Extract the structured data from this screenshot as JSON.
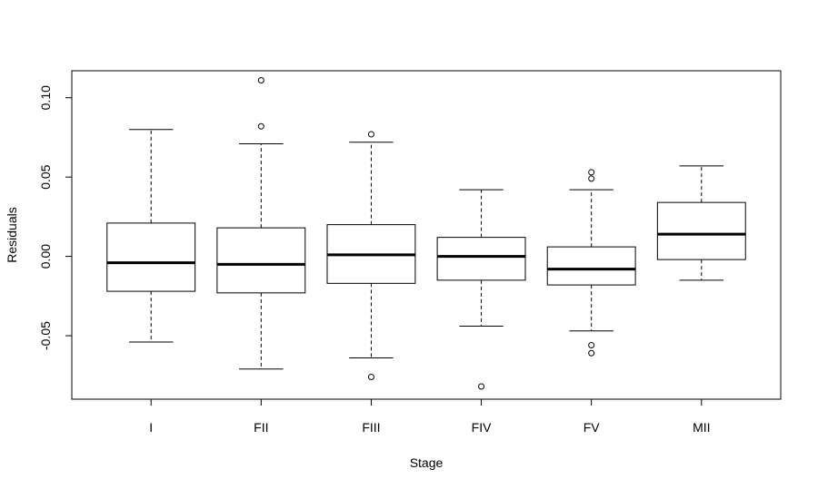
{
  "chart_data": {
    "type": "boxplot",
    "xlabel": "Stage",
    "ylabel": "Residuals",
    "ylim": [
      -0.09,
      0.117
    ],
    "yticks": [
      -0.05,
      0.0,
      0.05,
      0.1
    ],
    "ytick_labels": [
      "-0.05",
      "0.00",
      "0.05",
      "0.10"
    ],
    "grid": false,
    "categories": [
      "I",
      "FII",
      "FIII",
      "FIV",
      "FV",
      "MII"
    ],
    "boxes": [
      {
        "category": "I",
        "whisker_low": -0.054,
        "q1": -0.022,
        "median": -0.004,
        "q3": 0.021,
        "whisker_high": 0.08,
        "outliers": []
      },
      {
        "category": "FII",
        "whisker_low": -0.071,
        "q1": -0.023,
        "median": -0.005,
        "q3": 0.018,
        "whisker_high": 0.071,
        "outliers": [
          0.111,
          0.082
        ]
      },
      {
        "category": "FIII",
        "whisker_low": -0.064,
        "q1": -0.017,
        "median": 0.001,
        "q3": 0.02,
        "whisker_high": 0.072,
        "outliers": [
          0.077,
          -0.076
        ]
      },
      {
        "category": "FIV",
        "whisker_low": -0.044,
        "q1": -0.015,
        "median": 0.0,
        "q3": 0.012,
        "whisker_high": 0.042,
        "outliers": [
          -0.082
        ]
      },
      {
        "category": "FV",
        "whisker_low": -0.047,
        "q1": -0.018,
        "median": -0.008,
        "q3": 0.006,
        "whisker_high": 0.042,
        "outliers": [
          0.053,
          0.049,
          -0.056,
          -0.061
        ]
      },
      {
        "category": "MII",
        "whisker_low": -0.015,
        "q1": -0.002,
        "median": 0.014,
        "q3": 0.034,
        "whisker_high": 0.057,
        "outliers": []
      }
    ]
  }
}
